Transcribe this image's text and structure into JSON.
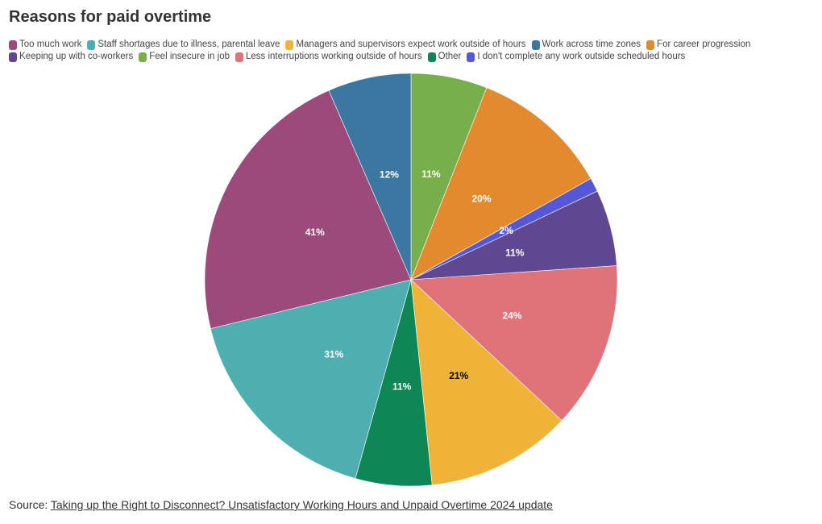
{
  "title": "Reasons for paid overtime",
  "source": {
    "prefix": "Source: ",
    "link_text": "Taking up the Right to Disconnect? Unsatisfactory Working Hours and Unpaid Overtime 2024 update"
  },
  "chart_data": {
    "type": "pie",
    "title": "Reasons for paid overtime",
    "legend_position": "top-left",
    "slices": [
      {
        "label": "Feel insecure in job",
        "value": 11,
        "display": "11%",
        "color": "#77b04b",
        "label_color": "#ffffff"
      },
      {
        "label": "For career progression",
        "value": 20,
        "display": "20%",
        "color": "#e38a2f",
        "label_color": "#ffffff"
      },
      {
        "label": "I don't complete any work outside scheduled hours",
        "value": 2,
        "display": "2%",
        "color": "#5558d6",
        "label_color": "#ffffff"
      },
      {
        "label": "Keeping up with co-workers",
        "value": 11,
        "display": "11%",
        "color": "#5f4891",
        "label_color": "#ffffff"
      },
      {
        "label": "Less interruptions working outside of hours",
        "value": 24,
        "display": "24%",
        "color": "#e0727a",
        "label_color": "#ffffff"
      },
      {
        "label": "Managers and supervisors expect work outside of hours",
        "value": 21,
        "display": "21%",
        "color": "#efb337",
        "label_color": "#000000"
      },
      {
        "label": "Other",
        "value": 11,
        "display": "11%",
        "color": "#0e8655",
        "label_color": "#ffffff"
      },
      {
        "label": "Staff shortages due to illness, parental leave",
        "value": 31,
        "display": "31%",
        "color": "#4fafb0",
        "label_color": "#ffffff"
      },
      {
        "label": "Too much work",
        "value": 41,
        "display": "41%",
        "color": "#9b4a7b",
        "label_color": "#ffffff"
      },
      {
        "label": "Work across time zones",
        "value": 12,
        "display": "12%",
        "color": "#3b77a1",
        "label_color": "#ffffff"
      }
    ],
    "legend_rows": [
      [
        {
          "label": "Too much work",
          "color": "#9b4a7b"
        },
        {
          "label": "Staff shortages due to illness, parental leave",
          "color": "#4fafb0"
        },
        {
          "label": "Managers and supervisors expect work outside of hours",
          "color": "#efb337"
        },
        {
          "label": "Work across time zones",
          "color": "#3b77a1"
        },
        {
          "label": "For career progression",
          "color": "#e38a2f"
        }
      ],
      [
        {
          "label": "Keeping up with co-workers",
          "color": "#5f4891"
        },
        {
          "label": "Feel insecure in job",
          "color": "#77b04b"
        },
        {
          "label": "Less interruptions working outside of hours",
          "color": "#e0727a"
        },
        {
          "label": "Other",
          "color": "#0e8655"
        },
        {
          "label": "I don't complete any work outside scheduled hours",
          "color": "#5558d6"
        }
      ]
    ]
  }
}
